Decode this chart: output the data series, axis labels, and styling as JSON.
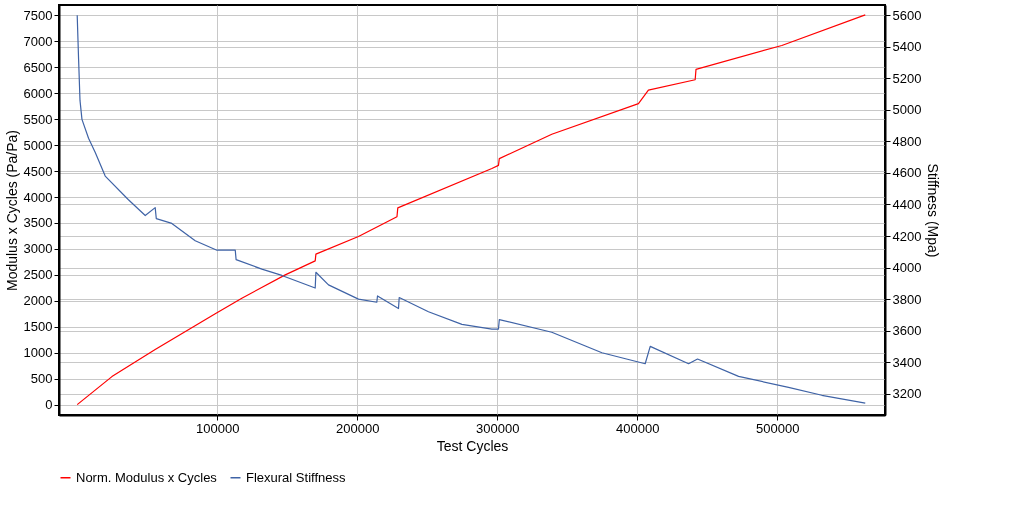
{
  "chart_data": {
    "type": "line",
    "xlabel": "Test Cycles",
    "ylabel": "Modulus x Cycles (Pa/Pa)",
    "y2label": "Stiffness (Mpa)",
    "xlim": [
      -13000,
      577000
    ],
    "xticks": [
      100000,
      200000,
      300000,
      400000,
      500000
    ],
    "ylim": [
      -200,
      7700
    ],
    "yticks": [
      0,
      500,
      1000,
      1500,
      2000,
      2500,
      3000,
      3500,
      4000,
      4500,
      5000,
      5500,
      6000,
      6500,
      7000,
      7500
    ],
    "y2lim": [
      3065,
      5665
    ],
    "y2ticks": [
      3200,
      3400,
      3600,
      3800,
      4000,
      4200,
      4400,
      4600,
      4800,
      5000,
      5200,
      5400,
      5600
    ],
    "grid": true,
    "legend": "bottom",
    "line_style": "solid",
    "marker": "none",
    "series": [
      {
        "name": "Norm. Modulus x Cycles",
        "color": "#ff0000",
        "x": [
          0,
          24800,
          55700,
          98600,
          117600,
          148600,
          170000,
          170500,
          200900,
          228400,
          229000,
          296200,
          300900,
          301500,
          339000,
          400900,
          408000,
          441400,
          442000,
          503300,
          562900
        ],
        "values": [
          0,
          540,
          1060,
          1750,
          2050,
          2500,
          2770,
          2900,
          3240,
          3620,
          3790,
          4550,
          4610,
          4740,
          5210,
          5800,
          6060,
          6260,
          6460,
          6920,
          7510
        ]
      },
      {
        "name": "Flexural Stiffness",
        "color": "#3f63a6",
        "axis": "y2",
        "x": [
          0,
          1000,
          2000,
          3400,
          8100,
          12900,
          20000,
          36600,
          48600,
          55700,
          56500,
          67600,
          84300,
          99800,
          112900,
          113500,
          131900,
          146200,
          170000,
          170500,
          179500,
          200900,
          214000,
          214500,
          229500,
          230000,
          250900,
          274800,
          296200,
          300900,
          301500,
          339000,
          374800,
          405700,
          409300,
          436700,
          443100,
          472400,
          508100,
          531900,
          562900
        ],
        "values": [
          5600,
          5320,
          5060,
          4940,
          4820,
          4730,
          4580,
          4430,
          4330,
          4380,
          4310,
          4280,
          4170,
          4110,
          4110,
          4050,
          3990,
          3950,
          3870,
          3970,
          3890,
          3800,
          3780,
          3820,
          3740,
          3810,
          3720,
          3640,
          3610,
          3610,
          3670,
          3590,
          3460,
          3390,
          3500,
          3390,
          3420,
          3310,
          3240,
          3190,
          3140
        ]
      }
    ]
  }
}
